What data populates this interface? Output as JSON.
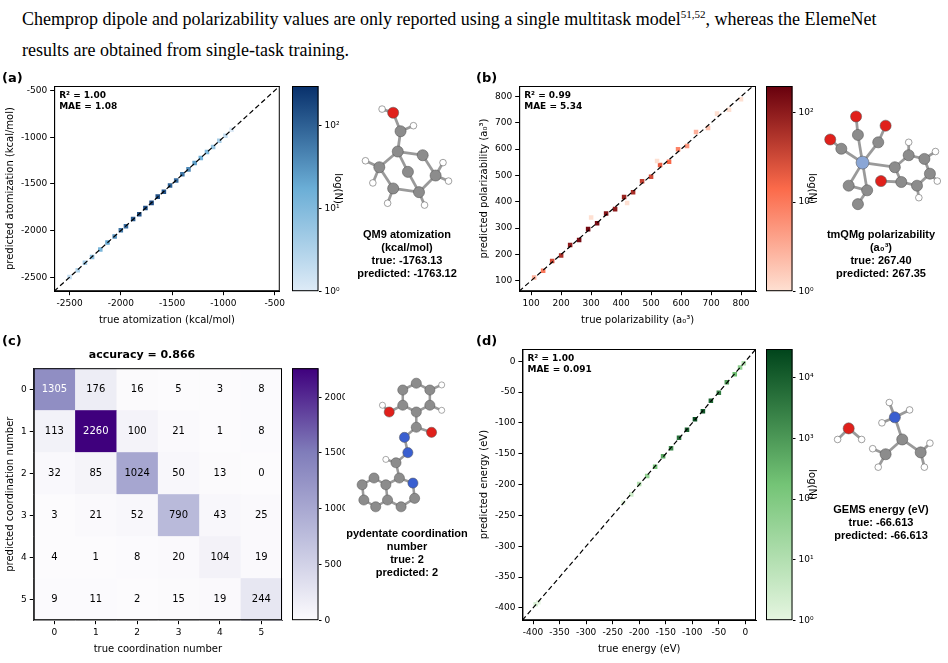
{
  "header": {
    "text": "Chemprop dipole and polarizability values are only reported using a single multitask model",
    "superscript": "51,52",
    "text_after": ", whereas the ElemeNet results are obtained from single-task training."
  },
  "chart_data": [
    {
      "type": "parity",
      "panel": "(a)",
      "annotations": [
        "R² = 1.00",
        "MAE = 1.08"
      ],
      "x_label": "true atomization (kcal/mol)",
      "y_label": "predicted atomization (kcal/mol)",
      "xlim": [
        -2650,
        -450
      ],
      "xticks": [
        -2500,
        -2000,
        -1500,
        -1000,
        -500
      ],
      "ylim": [
        -2650,
        -450
      ],
      "yticks": [
        -2500,
        -2000,
        -1500,
        -1000,
        -500
      ],
      "grid": false,
      "marker": "square",
      "line_style": "dashed",
      "x": [
        -2500,
        -2420,
        -2350,
        -2280,
        -2200,
        -2130,
        -2060,
        -2000,
        -1950,
        -1880,
        -1820,
        -1760,
        -1700,
        -1640,
        -1580,
        -1520,
        -1460,
        -1400,
        -1340,
        -1280,
        -1220,
        -1160,
        -1100,
        -1040,
        -980,
        -920
      ],
      "y": [
        -2497,
        -2425,
        -2346,
        -2284,
        -2203,
        -2127,
        -2063,
        -1996,
        -1953,
        -1877,
        -1824,
        -1757,
        -1703,
        -1636,
        -1584,
        -1517,
        -1463,
        -1397,
        -1344,
        -1276,
        -1223,
        -1157,
        -1104,
        -1037,
        -983,
        -918
      ],
      "counts": [
        2,
        3,
        4,
        8,
        12,
        20,
        35,
        60,
        80,
        120,
        150,
        160,
        170,
        150,
        130,
        100,
        80,
        60,
        40,
        25,
        15,
        10,
        6,
        4,
        2,
        1
      ],
      "colorbar": {
        "label": "log(N)",
        "log": true,
        "lim": [
          1,
          300
        ],
        "ticks": [
          {
            "value": 1,
            "label": "10⁰"
          },
          {
            "value": 10,
            "label": "10¹"
          },
          {
            "value": 100,
            "label": "10²"
          }
        ],
        "colors": [
          "#deebf7",
          "#6baed6",
          "#08306b"
        ]
      },
      "caption": {
        "title": "QM9 atomization (kcal/mol)",
        "lines": [
          "true: -1763.13",
          "predicted: -1763.12"
        ]
      }
    },
    {
      "type": "parity",
      "panel": "(b)",
      "annotations": [
        "R² = 0.99",
        "MAE = 5.34"
      ],
      "x_label": "true polarizability (a₀³)",
      "y_label": "predicted polarizability (a₀³)",
      "xlim": [
        60,
        850
      ],
      "xticks": [
        100,
        200,
        300,
        400,
        500,
        600,
        700,
        800
      ],
      "ylim": [
        60,
        840
      ],
      "yticks": [
        100,
        200,
        300,
        400,
        500,
        600,
        700,
        800
      ],
      "grid": false,
      "marker": "square",
      "line_style": "dashed",
      "x": [
        110,
        140,
        170,
        200,
        230,
        260,
        290,
        320,
        350,
        380,
        410,
        440,
        470,
        500,
        530,
        560,
        590,
        620,
        650,
        690,
        720,
        760,
        800,
        300,
        420,
        520
      ],
      "y": [
        112,
        138,
        175,
        196,
        236,
        255,
        296,
        318,
        355,
        372,
        418,
        436,
        478,
        495,
        540,
        552,
        600,
        612,
        665,
        680,
        735,
        750,
        790,
        340,
        395,
        555
      ],
      "counts": [
        3,
        10,
        30,
        60,
        100,
        150,
        160,
        150,
        120,
        100,
        80,
        60,
        40,
        30,
        20,
        15,
        8,
        5,
        3,
        2,
        1,
        1,
        1,
        1,
        1,
        1
      ],
      "colorbar": {
        "label": "log(N)",
        "log": true,
        "lim": [
          1,
          200
        ],
        "ticks": [
          {
            "value": 1,
            "label": "10⁰"
          },
          {
            "value": 10,
            "label": "10¹"
          },
          {
            "value": 100,
            "label": "10²"
          }
        ],
        "colors": [
          "#fee0d2",
          "#fb6a4a",
          "#67000d"
        ]
      },
      "caption": {
        "title": "tmQMg polarizability (a₀³)",
        "lines": [
          "true: 267.40",
          "predicted: 267.35"
        ]
      }
    },
    {
      "type": "heatmap",
      "panel": "(c)",
      "title": "accuracy = 0.866",
      "x_label": "true coordination number",
      "y_label": "predicted coordination number",
      "categories": [
        "0",
        "1",
        "2",
        "3",
        "4",
        "5"
      ],
      "cells": [
        [
          1305,
          176,
          16,
          5,
          3,
          8
        ],
        [
          113,
          2260,
          100,
          21,
          1,
          8
        ],
        [
          32,
          85,
          1024,
          50,
          13,
          0
        ],
        [
          3,
          21,
          52,
          790,
          43,
          25
        ],
        [
          4,
          1,
          8,
          20,
          104,
          19
        ],
        [
          9,
          11,
          2,
          15,
          19,
          244
        ]
      ],
      "data_labels": true,
      "grid": false,
      "colorbar": {
        "lim": [
          0,
          2260
        ],
        "ticks": [
          0,
          500,
          1000,
          1500,
          2000
        ],
        "colors": [
          "#fcfbfd",
          "#bcbddc",
          "#807dba",
          "#3f007d"
        ]
      },
      "caption": {
        "title": "pydentate coordination number",
        "lines": [
          "true: 2",
          "predicted: 2"
        ]
      }
    },
    {
      "type": "parity",
      "panel": "(d)",
      "annotations": [
        "R² = 1.00",
        "MAE = 0.091"
      ],
      "x_label": "true energy (eV)",
      "y_label": "predicted energy (eV)",
      "xlim": [
        -420,
        20
      ],
      "xticks": [
        -400,
        -350,
        -300,
        -250,
        -200,
        -150,
        -100,
        -50,
        0
      ],
      "ylim": [
        -420,
        20
      ],
      "yticks": [
        -400,
        -350,
        -300,
        -250,
        -200,
        -150,
        -100,
        -50,
        0
      ],
      "grid": false,
      "marker": "square",
      "line_style": "dashed",
      "x": [
        -395,
        -390,
        -230,
        -215,
        -200,
        -185,
        -170,
        -155,
        -140,
        -125,
        -110,
        -95,
        -80,
        -65,
        -50,
        -35,
        -20,
        -10,
        -3
      ],
      "y": [
        -394,
        -391,
        -229,
        -216,
        -199,
        -186,
        -171,
        -154,
        -141,
        -124,
        -111,
        -94,
        -81,
        -64,
        -51,
        -34,
        -21,
        -10,
        -3
      ],
      "counts": [
        2,
        1,
        1,
        3,
        10,
        40,
        150,
        600,
        2000,
        5000,
        10000,
        20000,
        15000,
        8000,
        3000,
        800,
        200,
        50,
        10
      ],
      "colorbar": {
        "label": "log(N)",
        "log": true,
        "lim": [
          1,
          30000
        ],
        "ticks": [
          {
            "value": 1,
            "label": "10⁰"
          },
          {
            "value": 10,
            "label": "10¹"
          },
          {
            "value": 100,
            "label": "10²"
          },
          {
            "value": 1000,
            "label": "10³"
          },
          {
            "value": 10000,
            "label": "10⁴"
          }
        ],
        "colors": [
          "#e5f5e0",
          "#74c476",
          "#00441b"
        ]
      },
      "caption": {
        "title": "GEMS energy (eV)",
        "lines": [
          "true: -66.613",
          "predicted: -66.613"
        ]
      }
    }
  ]
}
